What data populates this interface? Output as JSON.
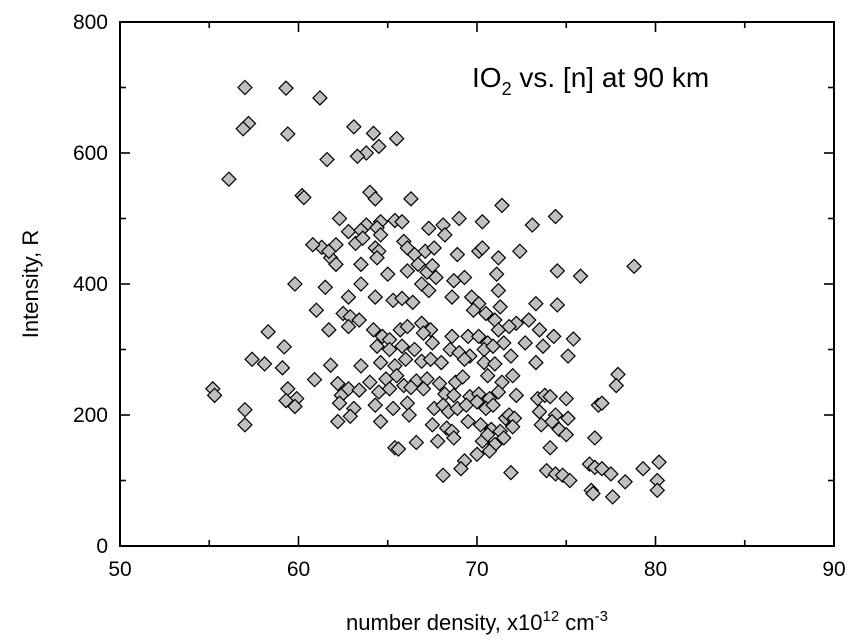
{
  "chart_data": {
    "type": "scatter",
    "title": "",
    "annotation": {
      "main": "IO",
      "sub": "2",
      "rest": " vs. [n] at 90 km"
    },
    "xlabel": {
      "main": "number density, x10",
      "sup1": "12",
      "mid": " cm",
      "sup2": "-3"
    },
    "ylabel": "Intensity, R",
    "xlim": [
      50,
      90
    ],
    "ylim": [
      0,
      800
    ],
    "xticks": [
      50,
      60,
      70,
      80,
      90
    ],
    "yticks": [
      0,
      200,
      400,
      600,
      800
    ],
    "xtick_labels": [
      "50",
      "60",
      "70",
      "80",
      "90"
    ],
    "ytick_labels": [
      "0",
      "200",
      "400",
      "600",
      "800"
    ],
    "grid": false,
    "marker": "diamond",
    "marker_color": "#c0c0c0",
    "marker_edge": "#000000",
    "points": [
      [
        57.0,
        700
      ],
      [
        59.3,
        699
      ],
      [
        61.2,
        684
      ],
      [
        57.2,
        645
      ],
      [
        56.9,
        637
      ],
      [
        59.4,
        629
      ],
      [
        63.1,
        640
      ],
      [
        64.2,
        630
      ],
      [
        65.5,
        622
      ],
      [
        63.8,
        600
      ],
      [
        63.3,
        595
      ],
      [
        64.5,
        610
      ],
      [
        61.6,
        590
      ],
      [
        56.1,
        560
      ],
      [
        60.2,
        535
      ],
      [
        60.3,
        532
      ],
      [
        64.0,
        540
      ],
      [
        64.3,
        530
      ],
      [
        66.3,
        530
      ],
      [
        71.4,
        520
      ],
      [
        74.4,
        503
      ],
      [
        69.0,
        500
      ],
      [
        70.3,
        495
      ],
      [
        65.4,
        497
      ],
      [
        64.6,
        495
      ],
      [
        63.8,
        490
      ],
      [
        64.4,
        486
      ],
      [
        73.1,
        490
      ],
      [
        62.3,
        500
      ],
      [
        62.8,
        480
      ],
      [
        63.5,
        482
      ],
      [
        64.6,
        475
      ],
      [
        65.8,
        495
      ],
      [
        67.3,
        485
      ],
      [
        68.1,
        490
      ],
      [
        68.2,
        475
      ],
      [
        61.3,
        456
      ],
      [
        60.8,
        460
      ],
      [
        61.8,
        440
      ],
      [
        61.7,
        450
      ],
      [
        62.1,
        460
      ],
      [
        63.2,
        462
      ],
      [
        63.6,
        470
      ],
      [
        64.3,
        455
      ],
      [
        64.5,
        450
      ],
      [
        65.9,
        465
      ],
      [
        66.1,
        455
      ],
      [
        66.5,
        445
      ],
      [
        67.1,
        450
      ],
      [
        67.6,
        455
      ],
      [
        68.9,
        445
      ],
      [
        70.1,
        450
      ],
      [
        70.3,
        455
      ],
      [
        71.2,
        440
      ],
      [
        72.4,
        450
      ],
      [
        75.8,
        412
      ],
      [
        74.5,
        420
      ],
      [
        69.3,
        410
      ],
      [
        71.1,
        415
      ],
      [
        62.1,
        430
      ],
      [
        63.5,
        430
      ],
      [
        64.4,
        440
      ],
      [
        65.0,
        415
      ],
      [
        66.1,
        420
      ],
      [
        66.7,
        430
      ],
      [
        67.2,
        418
      ],
      [
        67.5,
        428
      ],
      [
        67.7,
        410
      ],
      [
        68.7,
        405
      ],
      [
        66.9,
        400
      ],
      [
        59.8,
        400
      ],
      [
        61.5,
        395
      ],
      [
        63.5,
        400
      ],
      [
        64.3,
        380
      ],
      [
        62.8,
        380
      ],
      [
        65.3,
        375
      ],
      [
        65.8,
        378
      ],
      [
        66.4,
        372
      ],
      [
        67.3,
        390
      ],
      [
        68.6,
        380
      ],
      [
        69.7,
        380
      ],
      [
        70.1,
        370
      ],
      [
        71.2,
        390
      ],
      [
        71.3,
        365
      ],
      [
        73.3,
        370
      ],
      [
        74.5,
        368
      ],
      [
        69.8,
        360
      ],
      [
        70.5,
        355
      ],
      [
        71.0,
        345
      ],
      [
        72.2,
        340
      ],
      [
        72.9,
        345
      ],
      [
        61.0,
        360
      ],
      [
        62.5,
        355
      ],
      [
        62.9,
        350
      ],
      [
        63.4,
        345
      ],
      [
        64.2,
        330
      ],
      [
        64.7,
        320
      ],
      [
        65.1,
        315
      ],
      [
        65.7,
        330
      ],
      [
        66.1,
        335
      ],
      [
        66.9,
        340
      ],
      [
        67.4,
        330
      ],
      [
        67.0,
        325
      ],
      [
        68.6,
        320
      ],
      [
        69.5,
        320
      ],
      [
        70.1,
        320
      ],
      [
        70.6,
        310
      ],
      [
        71.2,
        330
      ],
      [
        71.8,
        335
      ],
      [
        73.5,
        330
      ],
      [
        74.3,
        320
      ],
      [
        75.4,
        316
      ],
      [
        58.3,
        327
      ],
      [
        59.2,
        304
      ],
      [
        61.7,
        330
      ],
      [
        62.8,
        335
      ],
      [
        64.4,
        305
      ],
      [
        65.1,
        300
      ],
      [
        65.8,
        305
      ],
      [
        66.5,
        300
      ],
      [
        67.5,
        310
      ],
      [
        68.5,
        300
      ],
      [
        69.0,
        295
      ],
      [
        69.6,
        290
      ],
      [
        70.4,
        300
      ],
      [
        70.9,
        305
      ],
      [
        71.5,
        310
      ],
      [
        72.7,
        310
      ],
      [
        73.7,
        305
      ],
      [
        57.4,
        285
      ],
      [
        58.1,
        278
      ],
      [
        59.1,
        272
      ],
      [
        61.8,
        276
      ],
      [
        63.5,
        275
      ],
      [
        64.6,
        280
      ],
      [
        65.4,
        275
      ],
      [
        66.0,
        285
      ],
      [
        66.9,
        282
      ],
      [
        67.4,
        285
      ],
      [
        68.0,
        280
      ],
      [
        69.3,
        285
      ],
      [
        70.4,
        280
      ],
      [
        71.0,
        278
      ],
      [
        71.9,
        290
      ],
      [
        73.3,
        280
      ],
      [
        75.1,
        290
      ],
      [
        60.9,
        254
      ],
      [
        62.2,
        248
      ],
      [
        64.0,
        250
      ],
      [
        64.9,
        255
      ],
      [
        65.5,
        260
      ],
      [
        66.6,
        252
      ],
      [
        67.2,
        255
      ],
      [
        67.9,
        248
      ],
      [
        68.8,
        250
      ],
      [
        69.2,
        258
      ],
      [
        70.6,
        260
      ],
      [
        71.4,
        250
      ],
      [
        72.0,
        260
      ],
      [
        55.2,
        240
      ],
      [
        55.3,
        230
      ],
      [
        59.4,
        240
      ],
      [
        59.9,
        225
      ],
      [
        59.3,
        222
      ],
      [
        62.4,
        230
      ],
      [
        62.8,
        240
      ],
      [
        63.4,
        238
      ],
      [
        64.5,
        235
      ],
      [
        65.1,
        240
      ],
      [
        65.9,
        245
      ],
      [
        66.3,
        242
      ],
      [
        67.0,
        240
      ],
      [
        68.2,
        232
      ],
      [
        68.7,
        230
      ],
      [
        69.6,
        228
      ],
      [
        70.1,
        232
      ],
      [
        70.7,
        225
      ],
      [
        71.2,
        235
      ],
      [
        72.2,
        230
      ],
      [
        73.4,
        225
      ],
      [
        73.8,
        230
      ],
      [
        74.1,
        228
      ],
      [
        75.0,
        225
      ],
      [
        77.9,
        262
      ],
      [
        77.8,
        245
      ],
      [
        57.0,
        208
      ],
      [
        59.8,
        213
      ],
      [
        62.3,
        218
      ],
      [
        63.1,
        210
      ],
      [
        64.3,
        215
      ],
      [
        65.3,
        210
      ],
      [
        66.1,
        218
      ],
      [
        66.2,
        200
      ],
      [
        67.6,
        210
      ],
      [
        68.1,
        215
      ],
      [
        68.4,
        205
      ],
      [
        68.9,
        210
      ],
      [
        69.4,
        215
      ],
      [
        70.0,
        220
      ],
      [
        70.5,
        210
      ],
      [
        70.9,
        215
      ],
      [
        71.6,
        195
      ],
      [
        71.8,
        200
      ],
      [
        72.1,
        195
      ],
      [
        73.5,
        205
      ],
      [
        74.4,
        200
      ],
      [
        75.1,
        195
      ],
      [
        76.8,
        215
      ],
      [
        77.0,
        218
      ],
      [
        57.0,
        185
      ],
      [
        62.2,
        190
      ],
      [
        62.9,
        198
      ],
      [
        64.6,
        190
      ],
      [
        67.5,
        185
      ],
      [
        68.3,
        180
      ],
      [
        68.6,
        175
      ],
      [
        69.5,
        190
      ],
      [
        70.2,
        185
      ],
      [
        70.8,
        178
      ],
      [
        71.3,
        175
      ],
      [
        72.0,
        182
      ],
      [
        73.6,
        185
      ],
      [
        74.2,
        190
      ],
      [
        74.6,
        178
      ],
      [
        67.8,
        160
      ],
      [
        66.6,
        158
      ],
      [
        68.7,
        165
      ],
      [
        70.3,
        160
      ],
      [
        70.6,
        170
      ],
      [
        71.0,
        155
      ],
      [
        71.5,
        165
      ],
      [
        74.1,
        150
      ],
      [
        75.0,
        170
      ],
      [
        76.6,
        165
      ],
      [
        65.4,
        150
      ],
      [
        65.6,
        148
      ],
      [
        69.3,
        130
      ],
      [
        69.1,
        118
      ],
      [
        70.0,
        140
      ],
      [
        70.7,
        145
      ],
      [
        71.9,
        112
      ],
      [
        73.9,
        115
      ],
      [
        74.4,
        110
      ],
      [
        74.8,
        108
      ],
      [
        75.2,
        100
      ],
      [
        76.3,
        125
      ],
      [
        76.6,
        120
      ],
      [
        77.0,
        118
      ],
      [
        77.5,
        110
      ],
      [
        78.3,
        98
      ],
      [
        79.3,
        118
      ],
      [
        80.1,
        100
      ],
      [
        80.2,
        128
      ],
      [
        80.1,
        85
      ],
      [
        76.4,
        85
      ],
      [
        76.5,
        80
      ],
      [
        77.6,
        75
      ],
      [
        68.1,
        108
      ],
      [
        78.8,
        427
      ]
    ]
  }
}
